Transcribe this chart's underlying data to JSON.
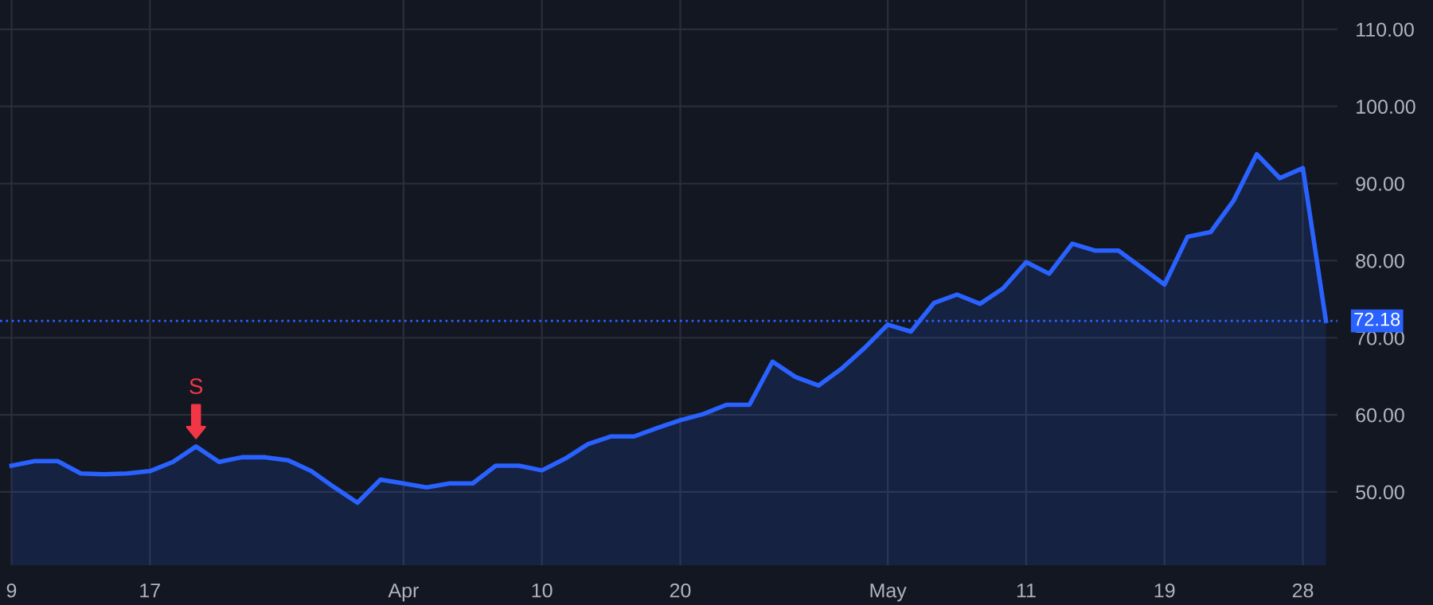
{
  "chart_data": {
    "type": "area",
    "categories": [
      "9",
      null,
      null,
      null,
      null,
      null,
      "17",
      null,
      null,
      null,
      null,
      null,
      null,
      null,
      null,
      null,
      null,
      "Apr",
      null,
      null,
      null,
      null,
      null,
      "10",
      null,
      null,
      null,
      null,
      null,
      "20",
      null,
      null,
      null,
      null,
      null,
      null,
      null,
      null,
      "May",
      null,
      null,
      null,
      null,
      null,
      "11",
      null,
      null,
      null,
      null,
      null,
      "19",
      null,
      null,
      null,
      null,
      null,
      "28",
      null
    ],
    "series": [
      {
        "color": "#2962ff",
        "values": [
          53.4,
          54.0,
          54.0,
          52.4,
          52.3,
          52.4,
          52.7,
          53.9,
          55.9,
          53.9,
          54.5,
          54.5,
          54.1,
          52.7,
          50.6,
          48.6,
          51.6,
          51.1,
          50.6,
          51.1,
          51.1,
          53.4,
          53.4,
          52.8,
          54.3,
          56.2,
          57.2,
          57.2,
          58.3,
          59.3,
          60.1,
          61.3,
          61.3,
          66.9,
          64.9,
          63.8,
          66.0,
          68.7,
          71.7,
          70.8,
          74.5,
          75.6,
          74.4,
          76.4,
          79.8,
          78.3,
          82.2,
          81.3,
          81.3,
          79.1,
          76.9,
          83.1,
          83.7,
          87.8,
          93.8,
          90.7,
          92.0,
          72.18
        ]
      }
    ],
    "ylim": [
      40.5,
      113.8
    ],
    "yticks": [
      {
        "value": 50,
        "label": "50.00"
      },
      {
        "value": 60,
        "label": "60.00"
      },
      {
        "value": 70,
        "label": "70.00"
      },
      {
        "value": 80,
        "label": "80.00"
      },
      {
        "value": 90,
        "label": "90.00"
      },
      {
        "value": 100,
        "label": "100.00"
      },
      {
        "value": 110,
        "label": "110.00"
      }
    ],
    "grid": true,
    "ref_lines": [
      {
        "axis": "y",
        "value": 72.18,
        "label": "72.18",
        "color": "#2962ff",
        "line_style": "dotted"
      }
    ],
    "annotations": [
      {
        "text": "S",
        "y": 55.9
      }
    ]
  }
}
